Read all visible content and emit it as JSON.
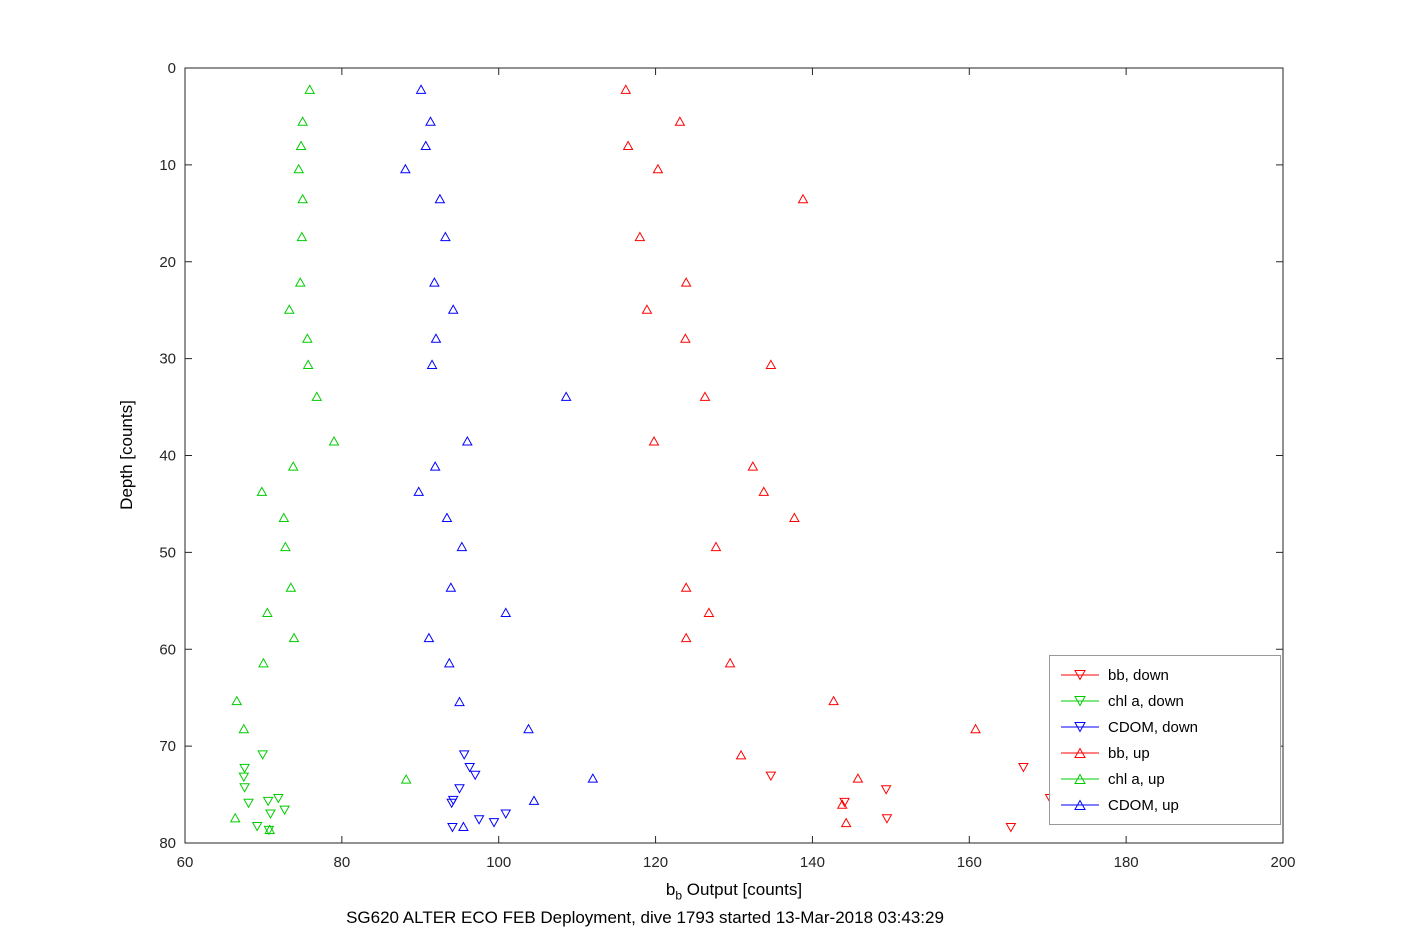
{
  "figure": {
    "bottom_title": "SG620 ALTER ECO FEB Deployment, dive 1793 started 13-Mar-2018 03:43:29",
    "xlabel": {
      "base": "b",
      "sub": "b",
      "rest": " Output [counts]"
    },
    "ylabel": "Depth [counts]"
  },
  "chart_data": {
    "type": "scatter",
    "title": "SG620 ALTER ECO FEB Deployment, dive 1793 started 13-Mar-2018 03:43:29",
    "xlabel": "b_b Output [counts]",
    "ylabel": "Depth [counts]",
    "xlim": [
      60,
      200
    ],
    "ylim": [
      0,
      80
    ],
    "y_axis_inverted": true,
    "grid": false,
    "legend_position": "lower-right",
    "axis_color": "#262626",
    "xticks": [
      60,
      80,
      100,
      120,
      140,
      160,
      180,
      200
    ],
    "yticks": [
      0,
      10,
      20,
      30,
      40,
      50,
      60,
      70,
      80
    ],
    "series": [
      {
        "name": "bb, down",
        "color": "#ff0000",
        "marker": "triangle-down",
        "points": [
          [
            166.9,
            72.2
          ],
          [
            134.7,
            73.1
          ],
          [
            149.4,
            74.5
          ],
          [
            170.3,
            75.4
          ],
          [
            144.1,
            75.8
          ],
          [
            149.5,
            77.5
          ],
          [
            165.3,
            78.4
          ]
        ]
      },
      {
        "name": "chl a, down",
        "color": "#00cc00",
        "marker": "triangle-down",
        "points": [
          [
            69.9,
            70.9
          ],
          [
            67.6,
            72.3
          ],
          [
            67.5,
            73.2
          ],
          [
            67.6,
            74.3
          ],
          [
            71.9,
            75.4
          ],
          [
            68.1,
            75.9
          ],
          [
            70.6,
            75.7
          ],
          [
            72.7,
            76.6
          ],
          [
            70.9,
            77.0
          ],
          [
            69.2,
            78.3
          ],
          [
            70.7,
            78.7
          ]
        ]
      },
      {
        "name": "CDOM, down",
        "color": "#0000ff",
        "marker": "triangle-down",
        "points": [
          [
            95.6,
            70.9
          ],
          [
            96.3,
            72.2
          ],
          [
            97.0,
            73.0
          ],
          [
            95.0,
            74.4
          ],
          [
            94.2,
            75.6
          ],
          [
            94.0,
            75.9
          ],
          [
            100.9,
            77.0
          ],
          [
            97.5,
            77.6
          ],
          [
            99.4,
            77.9
          ],
          [
            94.1,
            78.4
          ]
        ]
      },
      {
        "name": "bb, up",
        "color": "#ff0000",
        "marker": "triangle-up",
        "points": [
          [
            116.2,
            2.2
          ],
          [
            123.1,
            5.5
          ],
          [
            116.5,
            8.0
          ],
          [
            120.3,
            10.4
          ],
          [
            138.8,
            13.5
          ],
          [
            118.0,
            17.4
          ],
          [
            123.9,
            22.1
          ],
          [
            118.9,
            24.9
          ],
          [
            123.8,
            27.9
          ],
          [
            134.7,
            30.6
          ],
          [
            126.3,
            33.9
          ],
          [
            119.8,
            38.5
          ],
          [
            132.4,
            41.1
          ],
          [
            133.8,
            43.7
          ],
          [
            137.7,
            46.4
          ],
          [
            127.7,
            49.4
          ],
          [
            123.9,
            53.6
          ],
          [
            126.8,
            56.2
          ],
          [
            123.9,
            58.8
          ],
          [
            129.5,
            61.4
          ],
          [
            142.7,
            65.3
          ],
          [
            160.8,
            68.2
          ],
          [
            130.9,
            70.9
          ],
          [
            145.8,
            73.3
          ],
          [
            143.8,
            76.0
          ],
          [
            144.3,
            77.9
          ]
        ]
      },
      {
        "name": "chl a, up",
        "color": "#00cc00",
        "marker": "triangle-up",
        "points": [
          [
            75.9,
            2.2
          ],
          [
            75.0,
            5.5
          ],
          [
            74.8,
            8.0
          ],
          [
            74.5,
            10.4
          ],
          [
            75.0,
            13.5
          ],
          [
            74.9,
            17.4
          ],
          [
            74.7,
            22.1
          ],
          [
            73.3,
            24.9
          ],
          [
            75.6,
            27.9
          ],
          [
            75.7,
            30.6
          ],
          [
            76.8,
            33.9
          ],
          [
            79.0,
            38.5
          ],
          [
            73.8,
            41.1
          ],
          [
            69.8,
            43.7
          ],
          [
            72.6,
            46.4
          ],
          [
            72.8,
            49.4
          ],
          [
            73.5,
            53.6
          ],
          [
            70.5,
            56.2
          ],
          [
            73.9,
            58.8
          ],
          [
            70.0,
            61.4
          ],
          [
            66.6,
            65.3
          ],
          [
            67.5,
            68.2
          ],
          [
            88.2,
            73.4
          ],
          [
            66.4,
            77.4
          ],
          [
            70.8,
            78.6
          ]
        ]
      },
      {
        "name": "CDOM, up",
        "color": "#0000ff",
        "marker": "triangle-up",
        "points": [
          [
            90.1,
            2.2
          ],
          [
            91.3,
            5.5
          ],
          [
            90.7,
            8.0
          ],
          [
            88.1,
            10.4
          ],
          [
            92.5,
            13.5
          ],
          [
            93.2,
            17.4
          ],
          [
            91.8,
            22.1
          ],
          [
            94.2,
            24.9
          ],
          [
            92.0,
            27.9
          ],
          [
            91.5,
            30.6
          ],
          [
            108.6,
            33.9
          ],
          [
            96.0,
            38.5
          ],
          [
            91.9,
            41.1
          ],
          [
            89.8,
            43.7
          ],
          [
            93.4,
            46.4
          ],
          [
            95.3,
            49.4
          ],
          [
            93.9,
            53.6
          ],
          [
            100.9,
            56.2
          ],
          [
            91.1,
            58.8
          ],
          [
            93.7,
            61.4
          ],
          [
            95.0,
            65.4
          ],
          [
            103.8,
            68.2
          ],
          [
            112.0,
            73.3
          ],
          [
            104.5,
            75.6
          ],
          [
            95.5,
            78.3
          ]
        ]
      }
    ]
  }
}
